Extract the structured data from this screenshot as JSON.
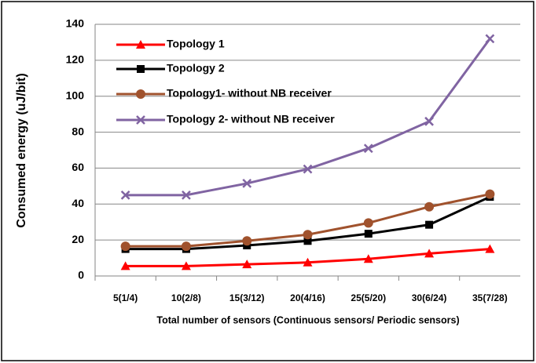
{
  "chart_data": {
    "type": "line",
    "y_label": "Consumed energy (uJ/bit)",
    "x_label": "Total number of sensors (Continuous sensors/ Periodic sensors)",
    "categories": [
      "5(1/4)",
      "10(2/8)",
      "15(3/12)",
      "20(4/16)",
      "25(5/20)",
      "30(6/24)",
      "35(7/28)"
    ],
    "series": [
      {
        "name": "Topology 1",
        "color": "#ff0000",
        "marker": "triangle",
        "values": [
          5.5,
          5.5,
          6.5,
          7.5,
          9.5,
          12.5,
          15
        ]
      },
      {
        "name": "Topology 2",
        "color": "#000000",
        "marker": "square",
        "values": [
          15,
          15,
          17,
          19.5,
          23.5,
          28.5,
          44
        ]
      },
      {
        "name": "Topology1- without NB receiver",
        "color": "#a0522d",
        "marker": "circle",
        "values": [
          16.5,
          16.5,
          19.5,
          23,
          29.5,
          38.5,
          45.5
        ]
      },
      {
        "name": "Topology 2- without NB receiver",
        "color": "#8064a2",
        "marker": "x",
        "values": [
          45,
          45,
          51.5,
          59.5,
          71,
          86,
          132
        ]
      }
    ],
    "ylim": [
      0,
      140
    ],
    "yticks": [
      0,
      20,
      40,
      60,
      80,
      100,
      120,
      140
    ],
    "grid": true,
    "legend": "upper left"
  }
}
